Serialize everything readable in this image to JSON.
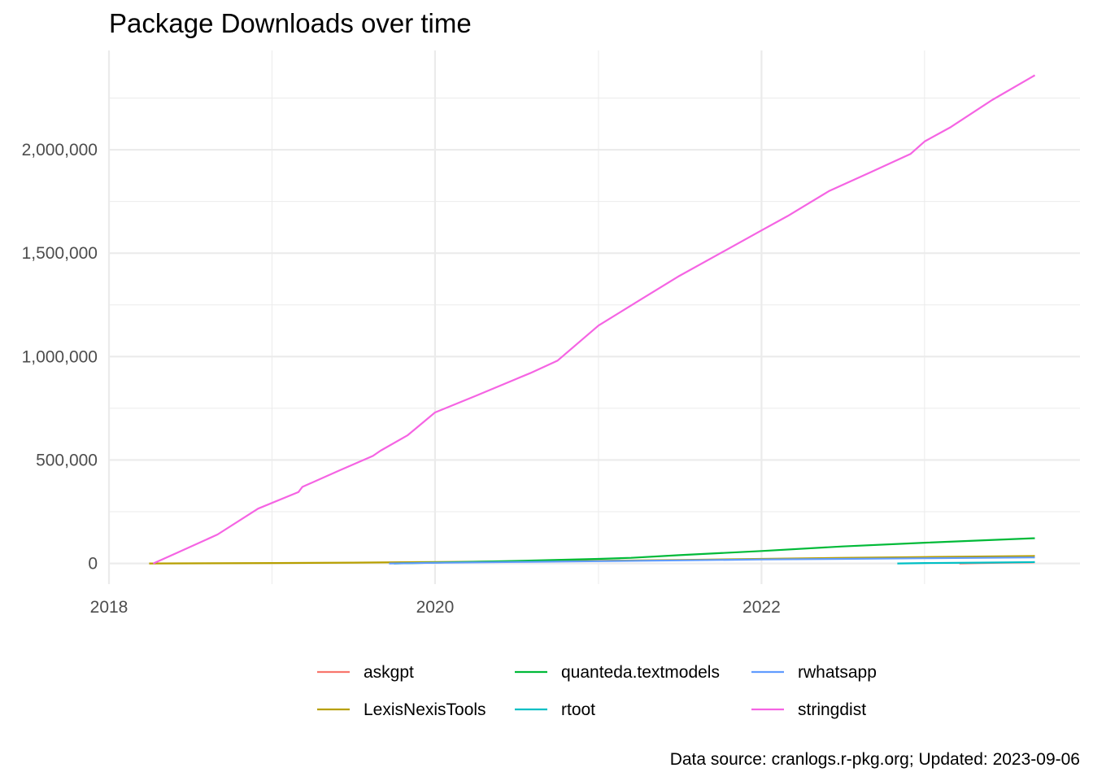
{
  "chart_data": {
    "type": "line",
    "title": "Package Downloads over time",
    "xlabel": "",
    "ylabel": "",
    "xlim": [
      "2018-01-01",
      "2023-12-15"
    ],
    "ylim": [
      -100000,
      2480000
    ],
    "x_ticks": [
      {
        "date": "2018-01-01",
        "label": "2018"
      },
      {
        "date": "2020-01-01",
        "label": "2020"
      },
      {
        "date": "2022-01-01",
        "label": "2022"
      }
    ],
    "x_minor_ticks": [
      "2019-01-01",
      "2021-01-01",
      "2023-01-01"
    ],
    "y_ticks": [
      {
        "value": 0,
        "label": "0"
      },
      {
        "value": 500000,
        "label": "500,000"
      },
      {
        "value": 1000000,
        "label": "1,000,000"
      },
      {
        "value": 1500000,
        "label": "1,500,000"
      },
      {
        "value": 2000000,
        "label": "2,000,000"
      }
    ],
    "y_minor_ticks": [
      250000,
      750000,
      1250000,
      1750000,
      2250000
    ],
    "grid": true,
    "legend_position": "bottom",
    "series": [
      {
        "name": "askgpt",
        "color": "#F8766D",
        "points": [
          [
            "2023-03-20",
            0
          ],
          [
            "2023-05-01",
            1500
          ],
          [
            "2023-07-01",
            3500
          ],
          [
            "2023-09-05",
            5500
          ]
        ]
      },
      {
        "name": "LexisNexisTools",
        "color": "#B79F00",
        "points": [
          [
            "2018-04-01",
            0
          ],
          [
            "2019-01-01",
            2000
          ],
          [
            "2019-07-01",
            4000
          ],
          [
            "2020-01-01",
            7000
          ],
          [
            "2020-07-01",
            10000
          ],
          [
            "2021-01-01",
            13000
          ],
          [
            "2021-07-01",
            17000
          ],
          [
            "2022-01-01",
            22000
          ],
          [
            "2022-07-01",
            27000
          ],
          [
            "2023-01-01",
            31000
          ],
          [
            "2023-09-05",
            36000
          ]
        ]
      },
      {
        "name": "quanteda.textmodels",
        "color": "#00BA38",
        "points": [
          [
            "2019-10-01",
            0
          ],
          [
            "2020-01-01",
            4000
          ],
          [
            "2020-07-01",
            12000
          ],
          [
            "2021-01-01",
            22000
          ],
          [
            "2021-03-15",
            27000
          ],
          [
            "2021-07-01",
            40000
          ],
          [
            "2022-01-01",
            60000
          ],
          [
            "2022-07-01",
            82000
          ],
          [
            "2023-01-01",
            100000
          ],
          [
            "2023-09-05",
            122000
          ]
        ]
      },
      {
        "name": "rtoot",
        "color": "#00BFC4",
        "points": [
          [
            "2022-11-01",
            0
          ],
          [
            "2023-01-01",
            2000
          ],
          [
            "2023-05-01",
            4000
          ],
          [
            "2023-09-05",
            6500
          ]
        ]
      },
      {
        "name": "rwhatsapp",
        "color": "#619CFF",
        "points": [
          [
            "2019-09-20",
            0
          ],
          [
            "2020-01-01",
            3000
          ],
          [
            "2020-07-01",
            7000
          ],
          [
            "2021-01-01",
            11000
          ],
          [
            "2021-07-01",
            15000
          ],
          [
            "2022-01-01",
            19000
          ],
          [
            "2022-07-01",
            22000
          ],
          [
            "2023-01-01",
            25000
          ],
          [
            "2023-09-05",
            29000
          ]
        ]
      },
      {
        "name": "stringdist",
        "color": "#F564E3",
        "points": [
          [
            "2018-04-10",
            0
          ],
          [
            "2018-06-01",
            50000
          ],
          [
            "2018-09-01",
            140000
          ],
          [
            "2018-12-01",
            265000
          ],
          [
            "2019-03-01",
            345000
          ],
          [
            "2019-03-10",
            370000
          ],
          [
            "2019-06-01",
            450000
          ],
          [
            "2019-08-15",
            520000
          ],
          [
            "2019-09-01",
            545000
          ],
          [
            "2019-11-01",
            620000
          ],
          [
            "2020-01-01",
            730000
          ],
          [
            "2020-04-01",
            810000
          ],
          [
            "2020-08-01",
            920000
          ],
          [
            "2020-10-01",
            980000
          ],
          [
            "2021-01-01",
            1150000
          ],
          [
            "2021-04-01",
            1270000
          ],
          [
            "2021-07-01",
            1390000
          ],
          [
            "2021-10-01",
            1500000
          ],
          [
            "2022-01-01",
            1610000
          ],
          [
            "2022-03-01",
            1680000
          ],
          [
            "2022-06-01",
            1800000
          ],
          [
            "2022-09-01",
            1890000
          ],
          [
            "2022-12-01",
            1980000
          ],
          [
            "2023-01-01",
            2040000
          ],
          [
            "2023-03-01",
            2110000
          ],
          [
            "2023-06-01",
            2240000
          ],
          [
            "2023-09-05",
            2360000
          ]
        ]
      }
    ],
    "legend": [
      [
        "askgpt",
        "quanteda.textmodels",
        "rwhatsapp"
      ],
      [
        "LexisNexisTools",
        "rtoot",
        "stringdist"
      ]
    ],
    "caption": "Data source: cranlogs.r-pkg.org; Updated: 2023-09-06"
  }
}
